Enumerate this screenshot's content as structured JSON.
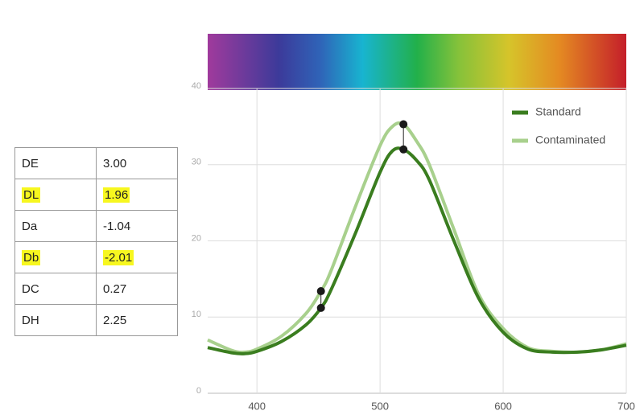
{
  "table": {
    "rows": [
      [
        "DE",
        "3.00"
      ],
      [
        "DL",
        "1.96"
      ],
      [
        "Da",
        "-1.04"
      ],
      [
        "Db",
        "-2.01"
      ],
      [
        "DC",
        "0.27"
      ],
      [
        "DH",
        "2.25"
      ]
    ],
    "highlight_rows": [
      1,
      3
    ]
  },
  "chart_data": {
    "type": "line",
    "x": [
      360,
      380,
      390,
      400,
      420,
      440,
      452,
      460,
      480,
      500,
      510,
      519,
      530,
      540,
      560,
      580,
      600,
      620,
      640,
      660,
      680,
      700
    ],
    "series": [
      {
        "name": "Standard",
        "color": "#3a7d1f",
        "values": [
          6,
          5.3,
          5.2,
          5.5,
          6.8,
          9,
          11.2,
          13.5,
          21,
          29,
          31.8,
          32,
          30.5,
          28,
          20,
          12.5,
          8,
          5.8,
          5.4,
          5.4,
          5.7,
          6.3
        ]
      },
      {
        "name": "Contaminated",
        "color": "#a8d08d",
        "values": [
          7,
          5.6,
          5.4,
          5.8,
          7.5,
          10.5,
          13.4,
          16,
          24.5,
          32.5,
          35,
          35.3,
          33,
          30,
          21.5,
          13,
          8.5,
          6,
          5.5,
          5.4,
          5.7,
          6.5
        ]
      }
    ],
    "marked_x": [
      452,
      519
    ],
    "xlim": [
      360,
      700
    ],
    "ylim": [
      0,
      40
    ],
    "xticks": [
      400,
      500,
      600,
      700
    ],
    "yticks": [
      0,
      10,
      20,
      30,
      40
    ],
    "grid": true,
    "legend": "top-right"
  }
}
